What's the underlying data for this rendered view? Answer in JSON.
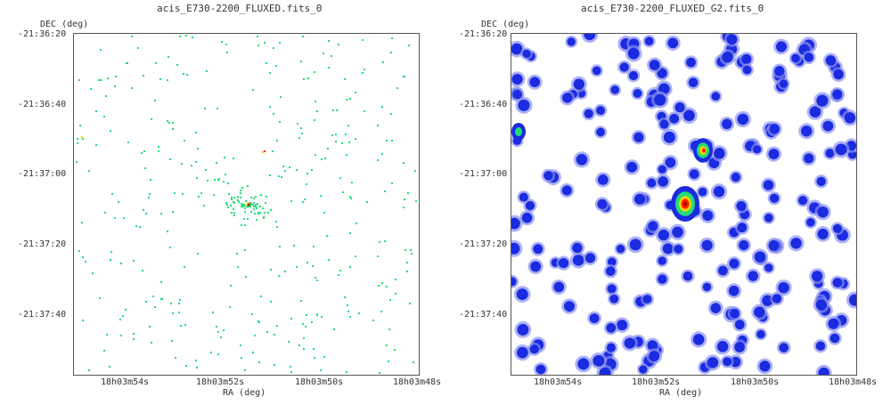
{
  "panels": [
    {
      "id": "raw",
      "title": "acis_E730-2200_FLUXED.fits_0",
      "y_axis_label": "DEC (deg)",
      "x_axis_label": "RA (deg)",
      "y_ticks": [
        "-21:36:20",
        "-21:36:40",
        "-21:37:00",
        "-21:37:20",
        "-21:37:40"
      ],
      "x_ticks": [
        "18h03m54s",
        "18h03m52s",
        "18h03m50s",
        "18h03m48s"
      ],
      "render_style": "sparse-pixels"
    },
    {
      "id": "smoothed",
      "title": "acis_E730-2200_FLUXED_G2.fits_0",
      "y_axis_label": "DEC (deg)",
      "x_axis_label": "RA (deg)",
      "y_ticks": [
        "-21:36:20",
        "-21:36:40",
        "-21:37:00",
        "-21:37:20",
        "-21:37:40"
      ],
      "x_ticks": [
        "18h03m54s",
        "18h03m52s",
        "18h03m50s",
        "18h03m48s"
      ],
      "render_style": "gaussian-smoothed"
    }
  ],
  "colors": {
    "background": "#ffffff",
    "frame": "#555555",
    "low": "#1a2be0",
    "halo": "#8a90f0",
    "mid": "#22dd77",
    "high": "#ffd000",
    "peak": "#ff2200",
    "core": "#aa0000"
  }
}
